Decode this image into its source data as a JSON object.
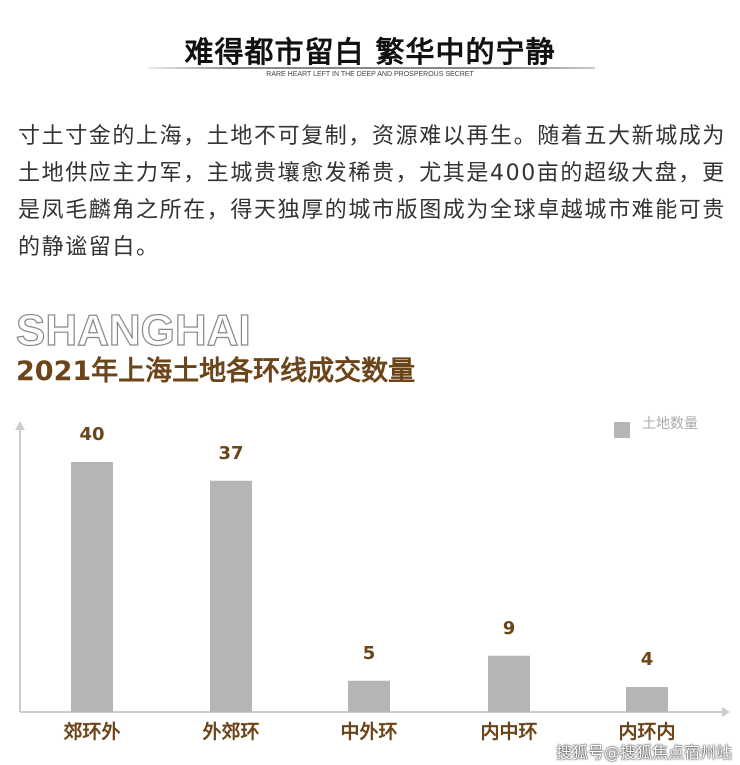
{
  "header": {
    "title": "难得都市留白 繁华中的宁静",
    "subtitle": "RARE HEART LEFT IN THE DEEP AND PROSPEROUS SECRET"
  },
  "paragraph": "寸土寸金的上海，土地不可复制，资源难以再生。随着五大新城成为土地供应主力军，主城贵壤愈发稀贵，尤其是400亩的超级大盘，更是凤毛麟角之所在，得天独厚的城市版图成为全球卓越城市难能可贵的静谧留白。",
  "section": {
    "decor": "SHANGHAI"
  },
  "watermark": "搜狐号@搜狐焦点宿州站",
  "chart_data": {
    "type": "bar",
    "title": "2021年上海土地各环线成交数量",
    "categories": [
      "郊环外",
      "外郊环",
      "中外环",
      "内中环",
      "内环内"
    ],
    "series": [
      {
        "name": "土地数量",
        "values": [
          40,
          37,
          5,
          9,
          4
        ]
      }
    ],
    "ylim": [
      0,
      45
    ],
    "legend": "top-right",
    "grid": false,
    "colors": {
      "bar": "#b5b5b5",
      "label": "#6b4519",
      "axis": "#cccccc"
    }
  }
}
